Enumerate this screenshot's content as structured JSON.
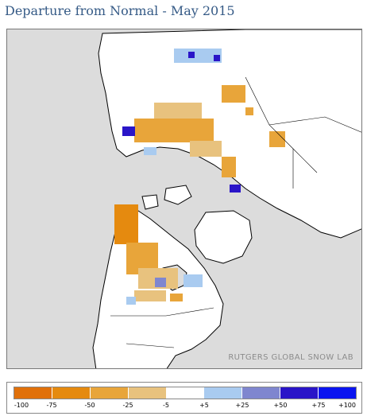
{
  "title": "Departure from Normal - May 2015",
  "credit": "RUTGERS GLOBAL SNOW LAB",
  "colors": {
    "ocean": "#dcdcdc",
    "land": "#ffffff",
    "coast": "#000000"
  },
  "legend": {
    "bins": [
      {
        "color": "#e0700a"
      },
      {
        "color": "#e58a0f"
      },
      {
        "color": "#e8a53a"
      },
      {
        "color": "#e8c27e"
      },
      {
        "color": "#ffffff"
      },
      {
        "color": "#a9cbf0"
      },
      {
        "color": "#7f86cf"
      },
      {
        "color": "#2a15c8"
      },
      {
        "color": "#0a14f0"
      }
    ],
    "ticks": [
      "-100",
      "-75",
      "-50",
      "-25",
      "-5",
      "+5",
      "+25",
      "+50",
      "+75",
      "+100"
    ]
  }
}
